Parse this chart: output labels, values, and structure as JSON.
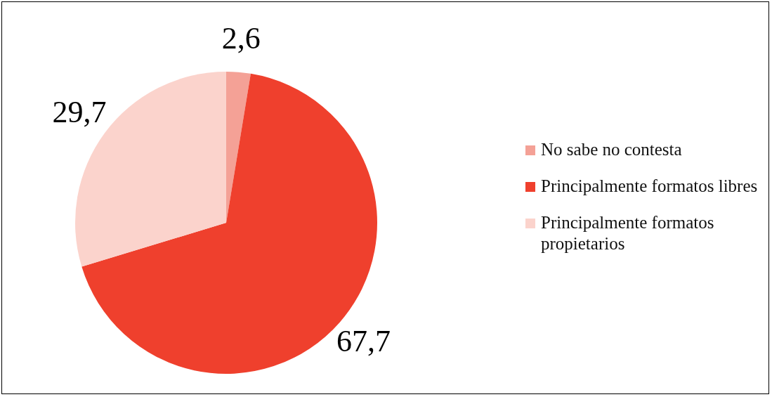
{
  "chart_data": {
    "type": "pie",
    "categories": [
      "No sabe no contesta",
      "Principalmente formatos libres",
      "Principalmente formatos propietarios"
    ],
    "values": [
      2.6,
      67.7,
      29.7
    ],
    "value_labels": [
      "2,6",
      "67,7",
      "29,7"
    ],
    "colors": [
      "#f4a196",
      "#ef402d",
      "#fbd3cc"
    ],
    "legend": "right"
  }
}
